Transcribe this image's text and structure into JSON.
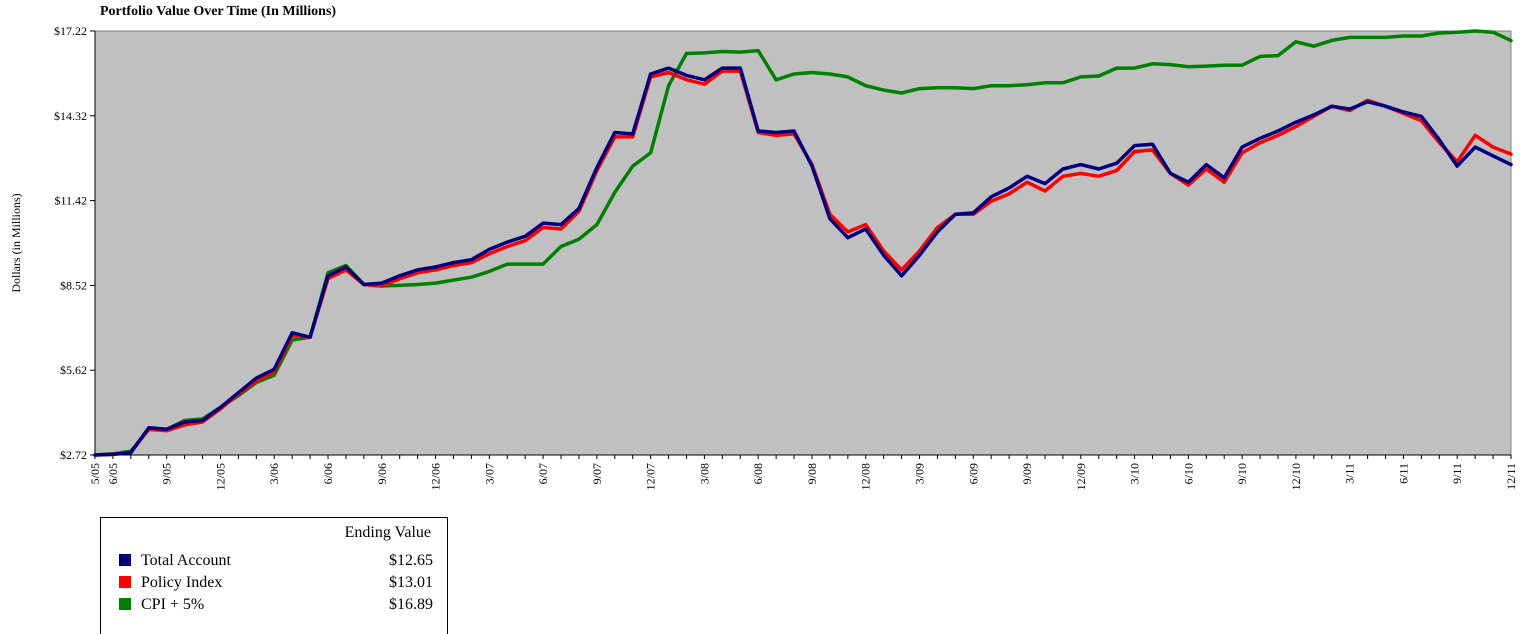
{
  "chart_data": {
    "type": "line",
    "title": "Portfolio Value Over Time (In Millions)",
    "xlabel": "",
    "ylabel": "Dollars (in Millions)",
    "ylim": [
      2.72,
      17.22
    ],
    "y_ticks": [
      "$2.72",
      "$5.62",
      "$8.52",
      "$11.42",
      "$14.32",
      "$17.22"
    ],
    "grid": false,
    "plot_background": "#c0c0c0",
    "x": [
      "5/05",
      "6/05",
      "7/05",
      "8/05",
      "9/05",
      "10/05",
      "11/05",
      "12/05",
      "1/06",
      "2/06",
      "3/06",
      "4/06",
      "5/06",
      "6/06",
      "7/06",
      "8/06",
      "9/06",
      "10/06",
      "11/06",
      "12/06",
      "1/07",
      "2/07",
      "3/07",
      "4/07",
      "5/07",
      "6/07",
      "7/07",
      "8/07",
      "9/07",
      "10/07",
      "11/07",
      "12/07",
      "1/08",
      "2/08",
      "3/08",
      "4/08",
      "5/08",
      "6/08",
      "7/08",
      "8/08",
      "9/08",
      "10/08",
      "11/08",
      "12/08",
      "1/09",
      "2/09",
      "3/09",
      "4/09",
      "5/09",
      "6/09",
      "7/09",
      "8/09",
      "9/09",
      "10/09",
      "11/09",
      "12/09",
      "1/10",
      "2/10",
      "3/10",
      "4/10",
      "5/10",
      "6/10",
      "7/10",
      "8/10",
      "9/10",
      "10/10",
      "11/10",
      "12/10",
      "1/11",
      "2/11",
      "3/11",
      "4/11",
      "5/11",
      "6/11",
      "7/11",
      "8/11",
      "9/11",
      "10/11",
      "11/11",
      "12/11"
    ],
    "x_tick_labels": [
      "5/05",
      "6/05",
      "9/05",
      "12/05",
      "3/06",
      "6/06",
      "9/06",
      "12/06",
      "3/07",
      "6/07",
      "9/07",
      "12/07",
      "3/08",
      "6/08",
      "9/08",
      "12/08",
      "3/09",
      "6/09",
      "9/09",
      "12/09",
      "3/10",
      "6/10",
      "9/10",
      "12/10",
      "3/11",
      "6/11",
      "9/11",
      "12/11"
    ],
    "series": [
      {
        "name": "Total Account",
        "color": "#000080",
        "values": [
          2.72,
          2.74,
          2.8,
          3.65,
          3.6,
          3.85,
          3.9,
          4.35,
          4.85,
          5.35,
          5.65,
          6.9,
          6.75,
          8.85,
          9.15,
          8.55,
          8.6,
          8.85,
          9.05,
          9.15,
          9.3,
          9.4,
          9.75,
          10.0,
          10.2,
          10.65,
          10.6,
          11.15,
          12.55,
          13.75,
          13.7,
          15.75,
          15.95,
          15.7,
          15.55,
          15.95,
          15.95,
          13.8,
          13.75,
          13.8,
          12.6,
          10.8,
          10.15,
          10.45,
          9.55,
          8.85,
          9.55,
          10.35,
          10.95,
          11.0,
          11.55,
          11.85,
          12.25,
          12.0,
          12.5,
          12.65,
          12.5,
          12.7,
          13.3,
          13.35,
          12.35,
          12.05,
          12.65,
          12.2,
          13.25,
          13.55,
          13.8,
          14.1,
          14.35,
          14.65,
          14.55,
          14.8,
          14.65,
          14.45,
          14.3,
          13.5,
          12.6,
          13.25,
          12.95,
          12.65
        ]
      },
      {
        "name": "Policy Index",
        "color": "#ff0000",
        "values": [
          2.72,
          2.74,
          2.82,
          3.6,
          3.55,
          3.75,
          3.85,
          4.3,
          4.8,
          5.25,
          5.55,
          6.8,
          6.75,
          8.75,
          9.05,
          8.55,
          8.5,
          8.75,
          8.95,
          9.05,
          9.2,
          9.3,
          9.6,
          9.85,
          10.05,
          10.5,
          10.45,
          11.05,
          12.45,
          13.6,
          13.6,
          15.65,
          15.8,
          15.55,
          15.4,
          15.85,
          15.85,
          13.75,
          13.65,
          13.7,
          12.65,
          10.95,
          10.35,
          10.6,
          9.7,
          9.05,
          9.7,
          10.5,
          10.95,
          10.95,
          11.4,
          11.65,
          12.05,
          11.75,
          12.25,
          12.35,
          12.25,
          12.45,
          13.1,
          13.15,
          12.35,
          11.95,
          12.5,
          12.05,
          13.05,
          13.4,
          13.65,
          13.95,
          14.3,
          14.65,
          14.5,
          14.85,
          14.65,
          14.4,
          14.15,
          13.4,
          12.75,
          13.65,
          13.25,
          13.01
        ]
      },
      {
        "name": "CPI + 5%",
        "color": "#008000",
        "values": [
          2.72,
          2.76,
          2.85,
          3.6,
          3.6,
          3.9,
          3.95,
          4.35,
          4.75,
          5.2,
          5.45,
          6.65,
          6.75,
          8.95,
          9.2,
          8.55,
          8.5,
          8.52,
          8.55,
          8.6,
          8.7,
          8.8,
          9.0,
          9.25,
          9.25,
          9.25,
          9.85,
          10.1,
          10.6,
          11.7,
          12.6,
          13.05,
          15.35,
          16.45,
          16.47,
          16.52,
          16.5,
          16.55,
          15.55,
          15.75,
          15.8,
          15.75,
          15.65,
          15.35,
          15.2,
          15.1,
          15.25,
          15.28,
          15.28,
          15.25,
          15.35,
          15.35,
          15.38,
          15.45,
          15.45,
          15.65,
          15.68,
          15.95,
          15.95,
          16.1,
          16.07,
          16.0,
          16.02,
          16.05,
          16.05,
          16.35,
          16.38,
          16.85,
          16.7,
          16.9,
          17.0,
          17.0,
          17.0,
          17.05,
          17.05,
          17.15,
          17.18,
          17.22,
          17.18,
          16.89
        ]
      }
    ],
    "legend": {
      "placement": "bottom-left",
      "header": "Ending Value",
      "entries": [
        {
          "name": "Total Account",
          "value": "$12.65",
          "color": "#000080"
        },
        {
          "name": "Policy Index",
          "value": "$13.01",
          "color": "#ff0000"
        },
        {
          "name": "CPI + 5%",
          "value": "$16.89",
          "color": "#008000"
        }
      ]
    }
  }
}
